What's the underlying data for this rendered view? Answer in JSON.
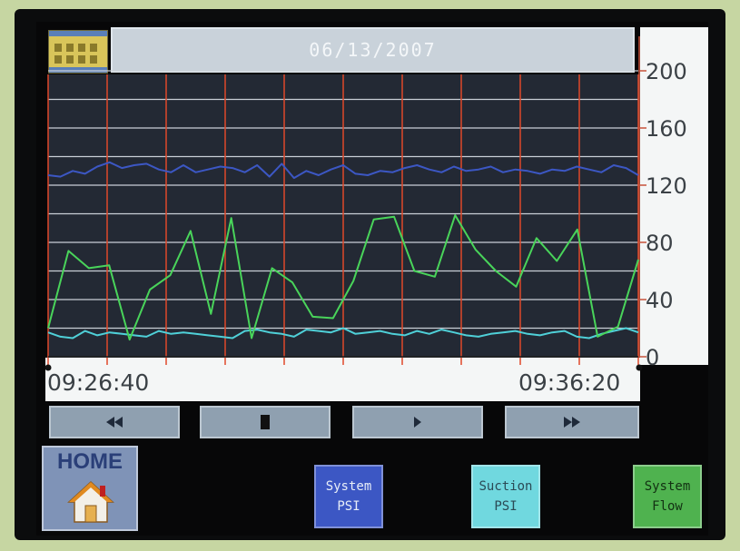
{
  "header": {
    "date": "06/13/2007"
  },
  "chart_data": {
    "type": "line",
    "title": "",
    "xlabel": "",
    "ylabel": "",
    "x_start_label": "09:26:40",
    "x_end_label": "09:36:20",
    "ylim": [
      0,
      220
    ],
    "y_ticks": [
      "200",
      "160",
      "120",
      "80",
      "40",
      "0"
    ],
    "y_tick_values": [
      200,
      160,
      120,
      80,
      40,
      0
    ],
    "grid": true,
    "series": [
      {
        "name": "System PSI",
        "color": "#3c57c4",
        "values": [
          127,
          126,
          130,
          128,
          133,
          136,
          132,
          134,
          135,
          131,
          129,
          134,
          129,
          131,
          133,
          132,
          129,
          134,
          126,
          135,
          125,
          130,
          127,
          131,
          134,
          128,
          127,
          130,
          129,
          132,
          134,
          131,
          129,
          133,
          130,
          131,
          133,
          129,
          131,
          130,
          128,
          131,
          130,
          133,
          131,
          129,
          134,
          132,
          127
        ]
      },
      {
        "name": "Suction PSI",
        "color": "#4fd0d8",
        "values": [
          17,
          14,
          13,
          18,
          15,
          17,
          16,
          15,
          14,
          18,
          16,
          17,
          16,
          15,
          14,
          13,
          18,
          19,
          17,
          16,
          14,
          19,
          18,
          17,
          20,
          16,
          17,
          18,
          16,
          15,
          18,
          16,
          19,
          17,
          15,
          14,
          16,
          17,
          18,
          16,
          15,
          17,
          18,
          14,
          13,
          16,
          18,
          20,
          17
        ]
      },
      {
        "name": "System Flow",
        "color": "#49d45a",
        "values": [
          20,
          74,
          62,
          64,
          12,
          47,
          57,
          88,
          30,
          97,
          13,
          62,
          52,
          28,
          27,
          53,
          96,
          98,
          60,
          56,
          99,
          75,
          60,
          49,
          83,
          67,
          89,
          14,
          21,
          68
        ]
      }
    ]
  },
  "navigation": {
    "rewind_icon": "rewind-icon",
    "stop_icon": "stop-icon",
    "play_icon": "play-icon",
    "fast_forward_icon": "fast-forward-icon"
  },
  "home_button": {
    "label": "HOME",
    "icon": "house-icon"
  },
  "legend_buttons": [
    {
      "line1": "System",
      "line2": "PSI",
      "color": "#3c57c4",
      "text_color": "#e8eef8"
    },
    {
      "line1": "Suction",
      "line2": "PSI",
      "color": "#70d8df",
      "text_color": "#2b4a55"
    },
    {
      "line1": "System",
      "line2": "Flow",
      "color": "#4fb24f",
      "text_color": "#123012"
    }
  ]
}
